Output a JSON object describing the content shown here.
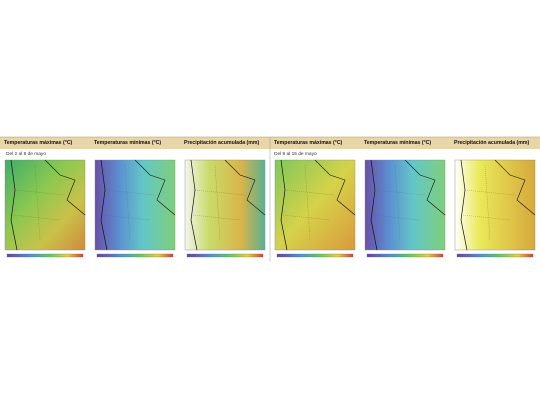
{
  "panels": [
    {
      "title": "Temperaturas máximas (°C)"
    },
    {
      "title": "Temperaturas mínimas (°C)"
    },
    {
      "title": "Precipitación acumulada (mm)"
    },
    {
      "title": "Temperaturas máximas (°C)"
    },
    {
      "title": "Temperaturas mínimas (°C)"
    },
    {
      "title": "Precipitación acumulada (mm)"
    }
  ],
  "periods": [
    "Del 2 al 8 de mayo",
    "Del 9 al 15 de mayo"
  ]
}
